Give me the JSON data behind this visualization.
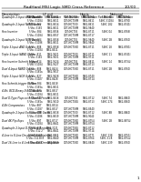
{
  "title": "RadHard MSI Logic SMD Cross Reference",
  "page": "1/2/00",
  "background_color": "#ffffff",
  "header_color": "#000000",
  "columns": {
    "description": "Description",
    "lf_col": "LF mil",
    "harris_col": "Harris",
    "national_col": "National"
  },
  "subheaders": [
    "Part Number",
    "SMD Number",
    "Part Number",
    "SMD Number",
    "Part Number",
    "SMD Number"
  ],
  "rows": [
    {
      "description": "Quadruple 2-Input AND Gates",
      "rows": [
        [
          "5 Vfac 388",
          "5962-8611",
          "CD74HCT08",
          "5962-8751I",
          "54HC 88",
          "5962-8751I"
        ],
        [
          "5 Vfac 31084",
          "5962-8611",
          "CD74HCT08M",
          "5962-8611",
          "54HC 31084",
          "5962-8791I"
        ]
      ]
    },
    {
      "description": "Quadruple 2-Input NAND Gates",
      "rows": [
        [
          "5 Vfac 382",
          "5962-8614",
          "CD74HCT000",
          "5962-8611",
          "54HC 182",
          "5962-8741I"
        ],
        [
          "5 Vfac 3182",
          "5962-8611",
          "CD71HCT08M",
          "5962-9840"
        ]
      ]
    },
    {
      "description": "Hex Inverter",
      "rows": [
        [
          "5 Vfac 384",
          "5962-8916",
          "CD74HCT04",
          "5962-8711",
          "54HC 04",
          "5962-8768I"
        ],
        [
          "5 Vfac 31084",
          "5962-8917",
          "CD71HCT08M",
          "5962-8717"
        ]
      ]
    },
    {
      "description": "Quadruple 2-Input NOR Gates",
      "rows": [
        [
          "5 Vfac 384",
          "5962-8918",
          "CD74HCT02",
          "5962-9840",
          "54HC 2B",
          "5962-8761I"
        ],
        [
          "5 Vfac 31086",
          "5962-8611",
          "CD71HCT08M",
          "5962-9840"
        ]
      ]
    },
    {
      "description": "Triple 3-Input AND Gates",
      "rows": [
        [
          "5 Vfac 808",
          "5962-8918",
          "CD74HCT08D",
          "5962-8711",
          "54HC 18",
          "5962-8781I"
        ],
        [
          "5 Vfac 31084",
          "5962-8411"
        ]
      ]
    },
    {
      "description": "Triple 3-Input NAND Gates",
      "rows": [
        [
          "5 Vfac 811",
          "5962-9421",
          "CD74HCT000",
          "5962-8711",
          "54HC 11",
          "5962-8741I"
        ],
        [
          "5 Vfac 3182",
          "5962-9431",
          "CD71HCT08M",
          "5962-9711"
        ]
      ]
    },
    {
      "description": "Hex Inverter Schmitt trigger",
      "rows": [
        [
          "5 Vfac 814",
          "5962-9524",
          "CD74HCT04",
          "5962-8811",
          "54HC 14",
          "5962-8734I"
        ],
        [
          "5 Vfac 31084",
          "5962-9527",
          "CD71HCT08M",
          "5962-8713"
        ]
      ]
    },
    {
      "description": "Dual 4-Input NAND Gates",
      "rows": [
        [
          "5 Vfac 808",
          "5962-8424",
          "CD74HCT08D",
          "5962-8711",
          "54HC 2B",
          "5962-8761I"
        ],
        [
          "5 Vfac 3182a",
          "5962-9817"
        ]
      ]
    },
    {
      "description": "Triple 3-Input NOR Gates",
      "rows": [
        [
          "5 Vfac 827",
          "5962-9428",
          "CD71HCT08D",
          "5962-8740"
        ],
        [
          "5 Vfac 31027",
          "5962-8428",
          "CD71HCT08M",
          "5962-8714"
        ]
      ]
    },
    {
      "description": "Hex Schmitt-trigger Buffers",
      "rows": [
        [
          "5 Vfac 384",
          "5962-8418"
        ],
        [
          "5 Vfac 3182a",
          "5962-8611"
        ]
      ]
    },
    {
      "description": "4-Bit, BCD-Binary-9-BCD Adders",
      "rows": [
        [
          "5 Vfac 874",
          "5962-8817"
        ],
        [
          "5 Vfac 31034",
          "5962-8611"
        ]
      ]
    },
    {
      "description": "Dual D-Type Flops with Clear & Preset",
      "rows": [
        [
          "5 Vfac 871",
          "5962-8416",
          "CD74HCT04",
          "5962-8712",
          "54HC 74",
          "5962-8861I"
        ],
        [
          "5 Vfac 3182a",
          "5962-9410",
          "CD74HCT04G",
          "5962-8713",
          "54HC 274",
          "5962-8561I"
        ]
      ]
    },
    {
      "description": "4-Bit Comparators",
      "rows": [
        [
          "5 Vfac 887",
          "5962-8514"
        ],
        [
          "5 Vfac 31087",
          "5962-8517",
          "CD71HCT08M",
          "5962-8540"
        ]
      ]
    },
    {
      "description": "Quadruple 2-Input Exclusive-OR Gates",
      "rows": [
        [
          "5 Vfac 896",
          "5962-8618",
          "CD74HCT000",
          "5962-8712",
          "54HC 8B",
          "5962-8861I"
        ],
        [
          "5 Vfac 31086",
          "5962-8619",
          "CD71HCT08M",
          "5962-9040"
        ]
      ]
    },
    {
      "description": "Dual 4K Flip-flops",
      "rows": [
        [
          "5 Vfac 897",
          "5962-8717",
          "CD74HCT08D",
          "5962-8754",
          "54HC 1B",
          "5962-8874I"
        ],
        [
          "5 Vfac 31084",
          "5962-8641",
          "CD71HCT08M",
          "5962-8754"
        ]
      ]
    },
    {
      "description": "Quadruple 2-Input D-Flip Flop Registers",
      "rows": [
        [
          "5 Vfac 811",
          "5962-3121",
          "CD74HCT04G",
          "5962-8712"
        ],
        [
          "5 Vfac 312 2",
          "5962-8641",
          "CD71HCT08M",
          "5962-9714"
        ]
      ]
    },
    {
      "description": "4-Line to 8-Line Decoder/Demultiplexer",
      "rows": [
        [
          "5 Vfac 8138",
          "5962-8664",
          "CD74HCT08D",
          "5962-8771",
          "54HC 138",
          "5962-8751I"
        ],
        [
          "5 Vfac 31138 8",
          "5962-8640",
          "CD71HCT08M",
          "5962-8764",
          "54HC 31 B",
          "5962-8754I"
        ]
      ]
    },
    {
      "description": "Dual 16-Line to 4-Line Encoder/Demultiplexer",
      "rows": [
        [
          "5 Vfac 8139",
          "5962-8816",
          "CD74HCT08D",
          "5962-8840",
          "54HC 239",
          "5962-8761I"
        ]
      ]
    }
  ]
}
